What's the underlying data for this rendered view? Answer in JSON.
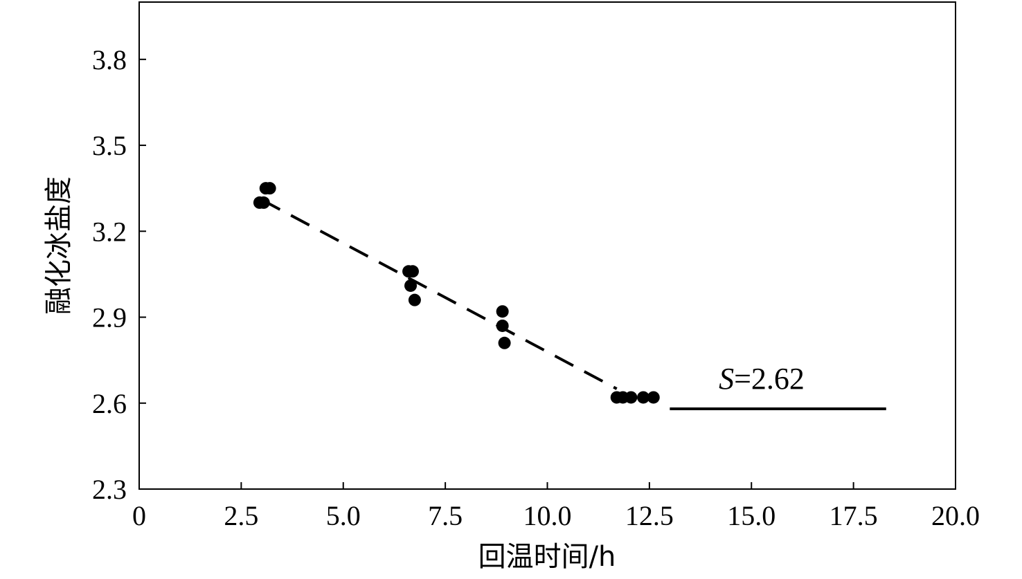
{
  "chart_data": {
    "type": "scatter",
    "title": "",
    "xlabel": "回温时间/h",
    "ylabel": "融化冰盐度",
    "xlim": [
      0,
      20
    ],
    "ylim": [
      2.3,
      4.0
    ],
    "x_ticks": [
      0,
      2.5,
      5.0,
      7.5,
      10.0,
      12.5,
      15.0,
      17.5,
      20.0
    ],
    "x_tick_labels": [
      "0",
      "2.5",
      "5.0",
      "7.5",
      "10.0",
      "12.5",
      "15.0",
      "17.5",
      "20.0"
    ],
    "y_ticks": [
      2.3,
      2.6,
      2.9,
      3.2,
      3.5,
      3.8
    ],
    "y_tick_labels": [
      "2.3",
      "2.6",
      "2.9",
      "3.2",
      "3.5",
      "3.8"
    ],
    "grid": false,
    "points": [
      {
        "x": 2.95,
        "y": 3.3
      },
      {
        "x": 3.05,
        "y": 3.3
      },
      {
        "x": 3.1,
        "y": 3.35
      },
      {
        "x": 3.2,
        "y": 3.35
      },
      {
        "x": 6.6,
        "y": 3.06
      },
      {
        "x": 6.7,
        "y": 3.06
      },
      {
        "x": 6.65,
        "y": 3.01
      },
      {
        "x": 6.75,
        "y": 2.96
      },
      {
        "x": 8.9,
        "y": 2.92
      },
      {
        "x": 8.9,
        "y": 2.87
      },
      {
        "x": 8.95,
        "y": 2.81
      },
      {
        "x": 11.7,
        "y": 2.62
      },
      {
        "x": 11.85,
        "y": 2.62
      },
      {
        "x": 12.05,
        "y": 2.62
      },
      {
        "x": 12.35,
        "y": 2.62
      },
      {
        "x": 12.6,
        "y": 2.62
      }
    ],
    "trend_line": {
      "style": "dashed",
      "from": [
        3.0,
        3.31
      ],
      "to": [
        11.7,
        2.65
      ]
    },
    "reference_line": {
      "style": "solid",
      "from": [
        13.0,
        2.58
      ],
      "to": [
        18.3,
        2.58
      ]
    },
    "annotation": {
      "prefix": "S",
      "text": "=2.62",
      "x": 14.2,
      "y": 2.65
    }
  }
}
